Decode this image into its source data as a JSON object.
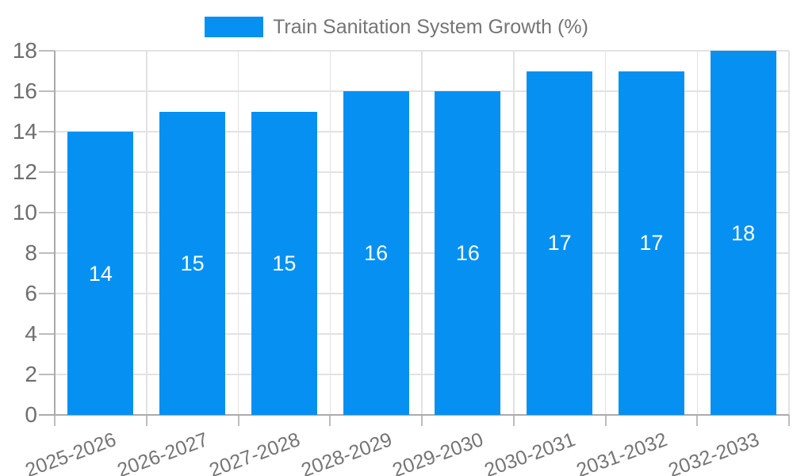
{
  "chart_data": {
    "type": "bar",
    "title": "Train Sanitation System Growth (%)",
    "legend": [
      "Train Sanitation System Growth (%)"
    ],
    "legend_position": "top",
    "categories": [
      "2025-2026",
      "2026-2027",
      "2027-2028",
      "2028-2029",
      "2029-2030",
      "2030-2031",
      "2031-2032",
      "2032-2033"
    ],
    "values": [
      14,
      15,
      15,
      16,
      16,
      17,
      17,
      18
    ],
    "bar_labels": [
      "14",
      "15",
      "15",
      "16",
      "16",
      "17",
      "17",
      "18"
    ],
    "bar_label_position": "center-of-bar",
    "xlabel": "",
    "ylabel": "",
    "ylim": [
      0,
      18
    ],
    "yticks": [
      0,
      2,
      4,
      6,
      8,
      10,
      12,
      14,
      16,
      18
    ],
    "grid": true,
    "colors": {
      "bar": "#0690f2",
      "gridline": "#e2e2e2",
      "axis_line": "#ababab",
      "tick_mark": "#bdbdbd",
      "y_axis_text": "#6e6e6e",
      "x_axis_text": "#757575",
      "legend_text": "#757575",
      "bar_label_text": "#ffffff",
      "background": "#ffffff"
    }
  }
}
